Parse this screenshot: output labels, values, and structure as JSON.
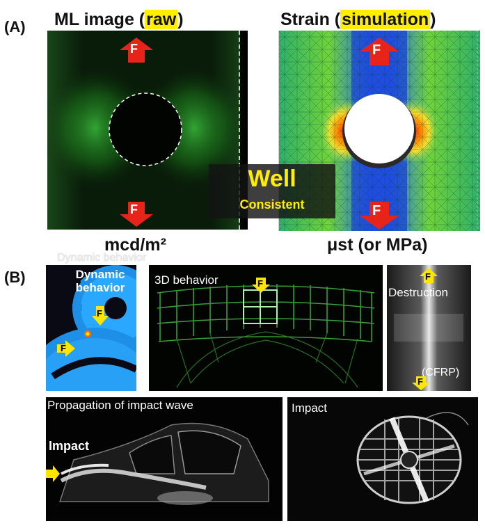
{
  "panelA": {
    "label": "(A)",
    "left_title_main": "ML image",
    "left_title_open": "(",
    "left_title_highlight": "raw",
    "left_title_close": ")",
    "right_title_main": "Strain (",
    "right_title_highlight": "simulation",
    "right_title_close": ")",
    "force_label": "F",
    "overlay_main": "Well",
    "overlay_sub": "Consistent",
    "left_unit": "mcd/m²",
    "right_unit": "μst (or MPa)"
  },
  "panelB": {
    "label": "(B)",
    "ghost_caption": "Dynamic behavior",
    "gear_caption_line1": "Dynamic",
    "gear_caption_line2": "behavior",
    "behavior3d_caption": "3D behavior",
    "destruction_caption": "Destruction",
    "cfrp_caption": "(CFRP)",
    "impact_wave_caption": "Propagation of impact wave",
    "impact_side_label": "Impact",
    "impact_caption": "Impact",
    "force_label": "F"
  },
  "colors": {
    "highlight": "#ffee00",
    "force_arrow": "#e8241a",
    "force_yellow": "#ffe600",
    "ml_green": "#33cc33",
    "overlay_text": "#ffee00"
  }
}
